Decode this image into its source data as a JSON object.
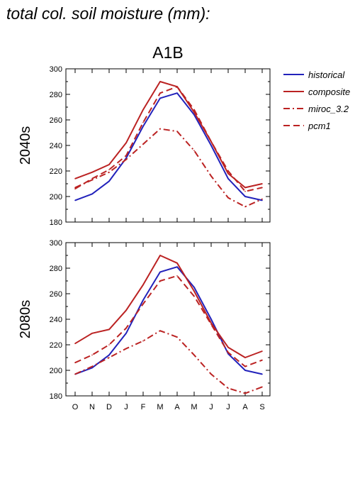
{
  "page": {
    "heading": "total col. soil moisture (mm):"
  },
  "colors": {
    "historical": "#2222bb",
    "models": "#bb2222"
  },
  "chart_data": [
    {
      "type": "line",
      "title": "A1B",
      "ylabel": "2040s",
      "xlabel": "",
      "categories": [
        "O",
        "N",
        "D",
        "J",
        "F",
        "M",
        "A",
        "M",
        "J",
        "J",
        "A",
        "S"
      ],
      "ylim": [
        180,
        300
      ],
      "yticks": [
        180,
        200,
        220,
        240,
        260,
        280,
        300
      ],
      "grid": false,
      "legend": "right",
      "series": [
        {
          "name": "historical",
          "style": "solid",
          "color": "#2222bb",
          "values": [
            197,
            202,
            212,
            230,
            255,
            277,
            281,
            264,
            240,
            214,
            200,
            197
          ]
        },
        {
          "name": "composite",
          "style": "solid",
          "color": "#bb2222",
          "values": [
            214,
            219,
            225,
            242,
            268,
            290,
            286,
            266,
            243,
            218,
            207,
            210
          ]
        },
        {
          "name": "miroc_3.2",
          "style": "dashdot",
          "color": "#bb2222",
          "values": [
            207,
            213,
            219,
            229,
            241,
            253,
            251,
            236,
            216,
            199,
            192,
            198
          ]
        },
        {
          "name": "pcm1",
          "style": "dash",
          "color": "#bb2222",
          "values": [
            206,
            214,
            221,
            232,
            258,
            281,
            286,
            268,
            243,
            220,
            204,
            207
          ]
        }
      ]
    },
    {
      "type": "line",
      "title": "",
      "ylabel": "2080s",
      "xlabel": "",
      "categories": [
        "O",
        "N",
        "D",
        "J",
        "F",
        "M",
        "A",
        "M",
        "J",
        "J",
        "A",
        "S"
      ],
      "ylim": [
        180,
        300
      ],
      "yticks": [
        180,
        200,
        220,
        240,
        260,
        280,
        300
      ],
      "grid": false,
      "legend": "none",
      "series": [
        {
          "name": "historical",
          "style": "solid",
          "color": "#2222bb",
          "values": [
            197,
            202,
            212,
            229,
            255,
            277,
            281,
            265,
            240,
            213,
            200,
            197
          ]
        },
        {
          "name": "composite",
          "style": "solid",
          "color": "#bb2222",
          "values": [
            221,
            229,
            232,
            247,
            267,
            290,
            284,
            262,
            237,
            218,
            210,
            215
          ]
        },
        {
          "name": "miroc_3.2",
          "style": "dashdot",
          "color": "#bb2222",
          "values": [
            197,
            203,
            210,
            217,
            223,
            231,
            226,
            212,
            197,
            186,
            182,
            187
          ]
        },
        {
          "name": "pcm1",
          "style": "dash",
          "color": "#bb2222",
          "values": [
            206,
            212,
            220,
            233,
            252,
            270,
            274,
            258,
            236,
            214,
            203,
            208
          ]
        }
      ]
    }
  ],
  "legend": {
    "items": [
      "historical",
      "composite",
      "miroc_3.2",
      "pcm1"
    ]
  }
}
